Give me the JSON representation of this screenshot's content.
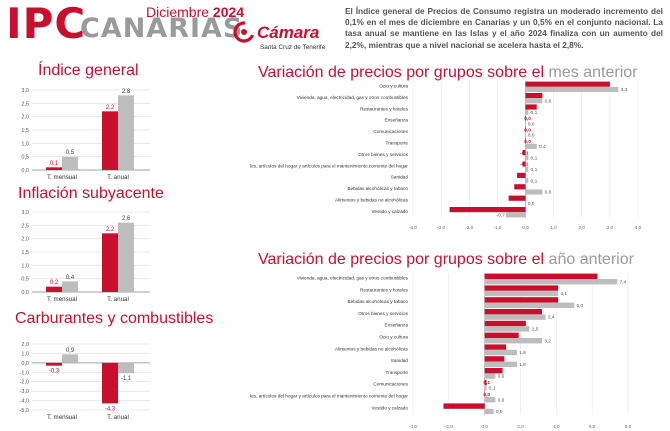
{
  "header": {
    "logo_ipc": "IPC",
    "logo_canarias": "CANARIAS",
    "month": "Diciembre",
    "year": "2024",
    "camara_name": "Cámara",
    "camara_sub": "Santa Cruz de Tenerife",
    "intro": "El Índice general de Precios de Consumo registra un moderado incremento del 0,1% en el mes de diciembre en Canarias y un 0,5% en el conjunto nacional. La tasa anual se mantiene en las Islas y el año 2024 finaliza con un aumento del 2,2%, mientras que a nivel nacional se acelera hasta el 2,8%."
  },
  "colors": {
    "canarias": "#c8102e",
    "nacional": "#bdbdbd",
    "grid": "#dcdcdc",
    "title_red": "#c8102e",
    "title_gray": "#9a9a9a"
  },
  "titles": {
    "indice_general": "Índice general",
    "inflacion_subyacente": "Inflación subyacente",
    "carburantes": "Carburantes y combustibles",
    "mes_prefix": "Variación de precios por grupos sobre el",
    "mes_suffix": "mes anterior",
    "anio_prefix": "Variación de precios por grupos sobre el",
    "anio_suffix": "año anterior"
  },
  "chart_data": [
    {
      "id": "indice-general",
      "type": "bar",
      "categories": [
        "T. mensual",
        "T. anual"
      ],
      "series": [
        {
          "values": [
            0.1,
            2.2
          ]
        },
        {
          "values": [
            0.5,
            2.8
          ]
        }
      ],
      "labels": [
        [
          "0,1",
          "2,2"
        ],
        [
          "0,5",
          "2,8"
        ]
      ],
      "yticks": [
        "3,0",
        "2,5",
        "2,0",
        "1,5",
        "1,0",
        "0,5",
        "0,0"
      ],
      "ylim": [
        0,
        3
      ]
    },
    {
      "id": "inflacion-subyacente",
      "type": "bar",
      "categories": [
        "T. mensual",
        "T. anual"
      ],
      "series": [
        {
          "values": [
            0.2,
            2.2
          ]
        },
        {
          "values": [
            0.4,
            2.6
          ]
        }
      ],
      "labels": [
        [
          "0,2",
          "2,2"
        ],
        [
          "0,4",
          "2,6"
        ]
      ],
      "yticks": [
        "3,0",
        "2,5",
        "2,0",
        "1,5",
        "1,0",
        "0,5",
        "0,0"
      ],
      "ylim": [
        0,
        3
      ]
    },
    {
      "id": "carburantes",
      "type": "bar",
      "categories": [
        "T. mensual",
        "T. anual"
      ],
      "series": [
        {
          "values": [
            -0.3,
            -4.3
          ]
        },
        {
          "values": [
            0.9,
            -1.1
          ]
        }
      ],
      "labels": [
        [
          "-0,3",
          "-4,3"
        ],
        [
          "0,9",
          "-1,1"
        ]
      ],
      "yticks": [
        "2,0",
        "1,0",
        "0,0",
        "-1,0",
        "-2,0",
        "-3,0",
        "-4,0",
        "-5,0"
      ],
      "ylim": [
        -5,
        2
      ]
    },
    {
      "id": "mes-anterior",
      "type": "bar",
      "orientation": "horizontal",
      "categories": [
        "Ocio y cultura",
        "Vivienda, agua, electricidad, gas y otros combustibles",
        "Restaurantes y hoteles",
        "Enseñanza",
        "Comunicaciones",
        "Transporte",
        "Otros bienes y servicios",
        "Muebles, artículos del hogar y artículos para el mantenimiento corriente del hogar",
        "Sanidad",
        "Bebidas alcohólicas y tabaco",
        "Alimentos y bebidas no alcohólicas",
        "Vestido y calzado"
      ],
      "series": [
        {
          "values": [
            3.0,
            0.6,
            0.4,
            0.0,
            0.0,
            0.0,
            -0.1,
            -0.1,
            -0.3,
            -0.4,
            -0.6,
            -2.7
          ]
        },
        {
          "values": [
            3.3,
            0.6,
            0.1,
            0.0,
            0.0,
            0.4,
            0.1,
            0.1,
            0.1,
            0.6,
            0.0,
            -0.7
          ]
        }
      ],
      "labels": [
        [
          "3,0",
          "0,6",
          "0,4",
          "0,0",
          "0,0",
          "0,0",
          "-0,1",
          "-0,1",
          "-0,3",
          "-0,4",
          "-0,6",
          "-2,7"
        ],
        [
          "3,3",
          "0,6",
          "0,1",
          "0,0",
          "0,0",
          "0,4",
          "0,1",
          "0,1",
          "0,1",
          "0,6",
          "0,0",
          "-0,7"
        ]
      ],
      "xticks": [
        "-4,0",
        "-3,0",
        "-2,0",
        "-1,0",
        "0,0",
        "1,0",
        "2,0",
        "3,0",
        "4,0"
      ],
      "xlim": [
        -4,
        4
      ]
    },
    {
      "id": "anio-anterior",
      "type": "bar",
      "orientation": "horizontal",
      "categories": [
        "Vivienda, agua, electricidad, gas y otros combustibles",
        "Restaurantes y hoteles",
        "Bebidas alcohólicas y tabaco",
        "Otros bienes y servicios",
        "Enseñanza",
        "Ocio y cultura",
        "Alimentos y bebidas no alcohólicas",
        "Sanidad",
        "Transporte",
        "Comunicaciones",
        "Muebles, artículos del hogar y artículos para el mantenimiento corriente del hogar",
        "Vestido y calzado"
      ],
      "series": [
        {
          "values": [
            6.3,
            4.1,
            4.1,
            3.2,
            2.3,
            1.9,
            1.2,
            1.1,
            1.0,
            0.1,
            0.0,
            -2.3
          ]
        },
        {
          "values": [
            7.4,
            4.1,
            5.0,
            3.4,
            2.5,
            3.2,
            1.8,
            1.8,
            0.6,
            0.1,
            0.6,
            0.5
          ]
        }
      ],
      "labels": [
        [
          "6,3",
          "4,1",
          "4,1",
          "3,2",
          "2,3",
          "1,9",
          "1,2",
          "1,1",
          "1,0",
          "0,1",
          "0,0",
          "-2,3"
        ],
        [
          "7,4",
          "4,1",
          "5,0",
          "3,4",
          "2,5",
          "3,2",
          "1,8",
          "1,8",
          "0,6",
          "0,1",
          "0,6",
          "0,5"
        ]
      ],
      "xticks": [
        "-4,0",
        "-2,0",
        "0,0",
        "2,0",
        "4,0",
        "6,0",
        "8,0"
      ],
      "xlim": [
        -4,
        8
      ]
    }
  ]
}
